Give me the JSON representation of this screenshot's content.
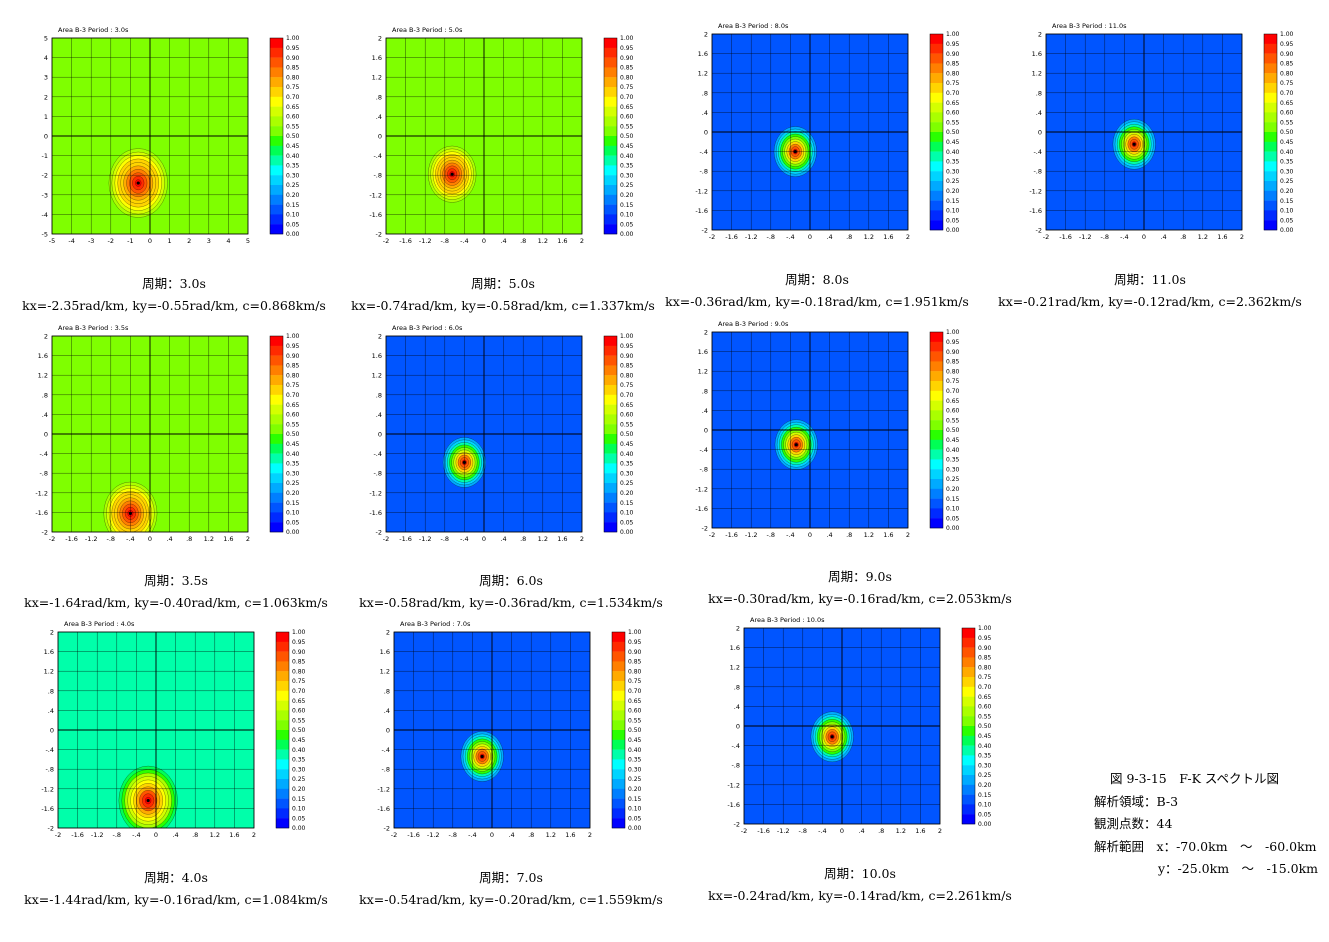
{
  "colorbar": {
    "levels": [
      "1.00",
      "0.95",
      "0.90",
      "0.85",
      "0.80",
      "0.75",
      "0.70",
      "0.65",
      "0.60",
      "0.55",
      "0.50",
      "0.45",
      "0.40",
      "0.35",
      "0.30",
      "0.25",
      "0.20",
      "0.15",
      "0.10",
      "0.05",
      "0.00"
    ],
    "colors": [
      "#ff0000",
      "#ff2a00",
      "#ff5500",
      "#ff7f00",
      "#ffaa00",
      "#ffd400",
      "#ffff00",
      "#d4ff00",
      "#aaff00",
      "#7fff00",
      "#2aff00",
      "#00ff55",
      "#00ffaa",
      "#00ffff",
      "#00d4ff",
      "#00aaff",
      "#007fff",
      "#0055ff",
      "#002aff",
      "#0000ff"
    ]
  },
  "panels": [
    {
      "id": "p30",
      "title": "Area B-3   Period : 3.0s",
      "caption": {
        "period": "周期：3.0s",
        "values": "kx=-2.35rad/km, ky=-0.55rad/km, c=0.868km/s"
      },
      "ticks": [
        "-5",
        "-4",
        "-3",
        "-2",
        "-1",
        "0",
        "1",
        "2",
        "3",
        "4",
        "5"
      ],
      "range": [
        -5,
        5
      ],
      "peak": [
        -0.6,
        -2.4
      ],
      "background": "#7fff00",
      "sharp": 0.55
    },
    {
      "id": "p50",
      "title": "Area B-3   Period : 5.0s",
      "caption": {
        "period": "周期：5.0s",
        "values": "kx=-0.74rad/km, ky=-0.58rad/km, c=1.337km/s"
      },
      "ticks": [
        "-2",
        "-1.6",
        "-1.2",
        "-.8",
        "-.4",
        "0",
        ".4",
        ".8",
        "1.2",
        "1.6",
        "2"
      ],
      "range": [
        -2,
        2
      ],
      "peak": [
        -0.65,
        -0.78
      ],
      "background": "#7fff00",
      "sharp": 0.45
    },
    {
      "id": "p80",
      "title": "Area B-3   Period : 8.0s",
      "caption": {
        "period": "周期：8.0s",
        "values": "kx=-0.36rad/km, ky=-0.18rad/km, c=1.951km/s"
      },
      "ticks": [
        "-2",
        "-1.6",
        "-1.2",
        "-.8",
        "-.4",
        "0",
        ".4",
        ".8",
        "1.2",
        "1.6",
        "2"
      ],
      "range": [
        -2,
        2
      ],
      "peak": [
        -0.3,
        -0.4
      ],
      "background": "#0055ff",
      "sharp": 0.4
    },
    {
      "id": "p110",
      "title": "Area B-3   Period : 11.0s",
      "caption": {
        "period": "周期：11.0s",
        "values": "kx=-0.21rad/km, ky=-0.12rad/km, c=2.362km/s"
      },
      "ticks": [
        "-2",
        "-1.6",
        "-1.2",
        "-.8",
        "-.4",
        "0",
        ".4",
        ".8",
        "1.2",
        "1.6",
        "2"
      ],
      "range": [
        -2,
        2
      ],
      "peak": [
        -0.2,
        -0.25
      ],
      "background": "#0055ff",
      "sharp": 0.4
    },
    {
      "id": "p35",
      "title": "Area B-3   Period : 3.5s",
      "caption": {
        "period": "周期：3.5s",
        "values": "kx=-1.64rad/km, ky=-0.40rad/km, c=1.063km/s"
      },
      "ticks": [
        "-2",
        "-1.6",
        "-1.2",
        "-.8",
        "-.4",
        "0",
        ".4",
        ".8",
        "1.2",
        "1.6",
        "2"
      ],
      "range": [
        -2,
        2
      ],
      "peak": [
        -0.4,
        -1.62
      ],
      "background": "#7fff00",
      "sharp": 0.5
    },
    {
      "id": "p60",
      "title": "Area B-3   Period : 6.0s",
      "caption": {
        "period": "周期：6.0s",
        "values": "kx=-0.58rad/km, ky=-0.36rad/km, c=1.534km/s"
      },
      "ticks": [
        "-2",
        "-1.6",
        "-1.2",
        "-.8",
        "-.4",
        "0",
        ".4",
        ".8",
        "1.2",
        "1.6",
        "2"
      ],
      "range": [
        -2,
        2
      ],
      "peak": [
        -0.4,
        -0.58
      ],
      "background": "#0055ff",
      "sharp": 0.4
    },
    {
      "id": "p90",
      "title": "Area B-3   Period : 9.0s",
      "caption": {
        "period": "周期：9.0s",
        "values": "kx=-0.30rad/km, ky=-0.16rad/km, c=2.053km/s"
      },
      "ticks": [
        "-2",
        "-1.6",
        "-1.2",
        "-.8",
        "-.4",
        "0",
        ".4",
        ".8",
        "1.2",
        "1.6",
        "2"
      ],
      "range": [
        -2,
        2
      ],
      "peak": [
        -0.28,
        -0.3
      ],
      "background": "#0055ff",
      "sharp": 0.4
    },
    {
      "id": "p40",
      "title": "Area B-3   Period : 4.0s",
      "caption": {
        "period": "周期：4.0s",
        "values": "kx=-1.44rad/km, ky=-0.16rad/km, c=1.084km/s"
      },
      "ticks": [
        "-2",
        "-1.6",
        "-1.2",
        "-.8",
        "-.4",
        "0",
        ".4",
        ".8",
        "1.2",
        "1.6",
        "2"
      ],
      "range": [
        -2,
        2
      ],
      "peak": [
        -0.16,
        -1.44
      ],
      "background": "#00ffaa",
      "sharp": 0.55
    },
    {
      "id": "p70",
      "title": "Area B-3   Period : 7.0s",
      "caption": {
        "period": "周期：7.0s",
        "values": "kx=-0.54rad/km, ky=-0.20rad/km, c=1.559km/s"
      },
      "ticks": [
        "-2",
        "-1.6",
        "-1.2",
        "-.8",
        "-.4",
        "0",
        ".4",
        ".8",
        "1.2",
        "1.6",
        "2"
      ],
      "range": [
        -2,
        2
      ],
      "peak": [
        -0.2,
        -0.54
      ],
      "background": "#0055ff",
      "sharp": 0.4
    },
    {
      "id": "p100",
      "title": "Area B-3   Period : 10.0s",
      "caption": {
        "period": "周期：10.0s",
        "values": "kx=-0.24rad/km, ky=-0.14rad/km, c=2.261km/s"
      },
      "ticks": [
        "-2",
        "-1.6",
        "-1.2",
        "-.8",
        "-.4",
        "0",
        ".4",
        ".8",
        "1.2",
        "1.6",
        "2"
      ],
      "range": [
        -2,
        2
      ],
      "peak": [
        -0.2,
        -0.22
      ],
      "background": "#0055ff",
      "sharp": 0.4
    }
  ],
  "figure_info": {
    "title": "図 9-3-15　F-K スペクトル図",
    "region": "解析領域：B-3",
    "stations": "観測点数：44",
    "range_label": "解析範囲",
    "range_x": "x：-70.0km　～　-60.0km",
    "range_y": "y：-25.0km　～　-15.0km"
  },
  "chart_data": [
    {
      "type": "heatmap",
      "title": "Area B-3   Period : 3.0s",
      "xlim": [
        -5,
        5
      ],
      "ylim": [
        -5,
        5
      ],
      "peak": {
        "x": -0.6,
        "y": -2.4
      },
      "kx": -2.35,
      "ky": -0.55,
      "c": 0.868
    },
    {
      "type": "heatmap",
      "title": "Area B-3   Period : 3.5s",
      "xlim": [
        -2,
        2
      ],
      "ylim": [
        -2,
        2
      ],
      "peak": {
        "x": -0.4,
        "y": -1.62
      },
      "kx": -1.64,
      "ky": -0.4,
      "c": 1.063
    },
    {
      "type": "heatmap",
      "title": "Area B-3   Period : 4.0s",
      "xlim": [
        -2,
        2
      ],
      "ylim": [
        -2,
        2
      ],
      "peak": {
        "x": -0.16,
        "y": -1.44
      },
      "kx": -1.44,
      "ky": -0.16,
      "c": 1.084
    },
    {
      "type": "heatmap",
      "title": "Area B-3   Period : 5.0s",
      "xlim": [
        -2,
        2
      ],
      "ylim": [
        -2,
        2
      ],
      "peak": {
        "x": -0.65,
        "y": -0.78
      },
      "kx": -0.74,
      "ky": -0.58,
      "c": 1.337
    },
    {
      "type": "heatmap",
      "title": "Area B-3   Period : 6.0s",
      "xlim": [
        -2,
        2
      ],
      "ylim": [
        -2,
        2
      ],
      "peak": {
        "x": -0.4,
        "y": -0.58
      },
      "kx": -0.58,
      "ky": -0.36,
      "c": 1.534
    },
    {
      "type": "heatmap",
      "title": "Area B-3   Period : 7.0s",
      "xlim": [
        -2,
        2
      ],
      "ylim": [
        -2,
        2
      ],
      "peak": {
        "x": -0.2,
        "y": -0.54
      },
      "kx": -0.54,
      "ky": -0.2,
      "c": 1.559
    },
    {
      "type": "heatmap",
      "title": "Area B-3   Period : 8.0s",
      "xlim": [
        -2,
        2
      ],
      "ylim": [
        -2,
        2
      ],
      "peak": {
        "x": -0.3,
        "y": -0.4
      },
      "kx": -0.36,
      "ky": -0.18,
      "c": 1.951
    },
    {
      "type": "heatmap",
      "title": "Area B-3   Period : 9.0s",
      "xlim": [
        -2,
        2
      ],
      "ylim": [
        -2,
        2
      ],
      "peak": {
        "x": -0.28,
        "y": -0.3
      },
      "kx": -0.3,
      "ky": -0.16,
      "c": 2.053
    },
    {
      "type": "heatmap",
      "title": "Area B-3   Period : 10.0s",
      "xlim": [
        -2,
        2
      ],
      "ylim": [
        -2,
        2
      ],
      "peak": {
        "x": -0.2,
        "y": -0.22
      },
      "kx": -0.24,
      "ky": -0.14,
      "c": 2.261
    },
    {
      "type": "heatmap",
      "title": "Area B-3   Period : 11.0s",
      "xlim": [
        -2,
        2
      ],
      "ylim": [
        -2,
        2
      ],
      "peak": {
        "x": -0.2,
        "y": -0.25
      },
      "kx": -0.21,
      "ky": -0.12,
      "c": 2.362
    }
  ]
}
